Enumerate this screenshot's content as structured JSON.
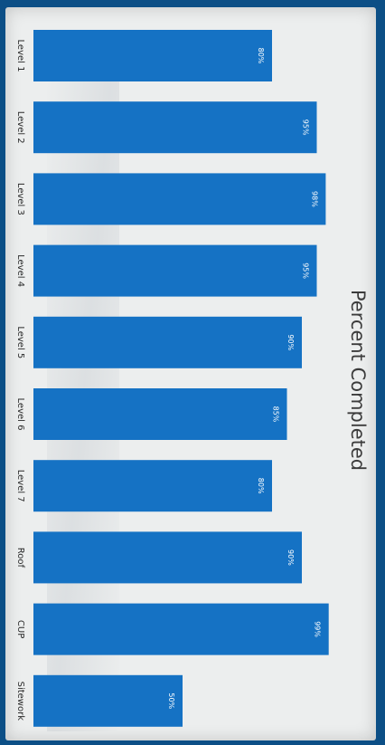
{
  "chart_data": {
    "type": "bar",
    "orientation": "horizontal",
    "title": "Percent Completed",
    "categories": [
      "Level 1",
      "Level 2",
      "Level 3",
      "Level 4",
      "Level 5",
      "Level 6",
      "Level 7",
      "Roof",
      "CUP",
      "Sitework"
    ],
    "values": [
      80,
      95,
      98,
      95,
      90,
      85,
      80,
      90,
      99,
      50
    ],
    "value_labels": [
      "80%",
      "95%",
      "98%",
      "95%",
      "90%",
      "85%",
      "80%",
      "90%",
      "99%",
      "50%"
    ],
    "xlim": [
      0,
      100
    ],
    "grid": false,
    "legend": "none",
    "bar_color": "#1572c4"
  }
}
